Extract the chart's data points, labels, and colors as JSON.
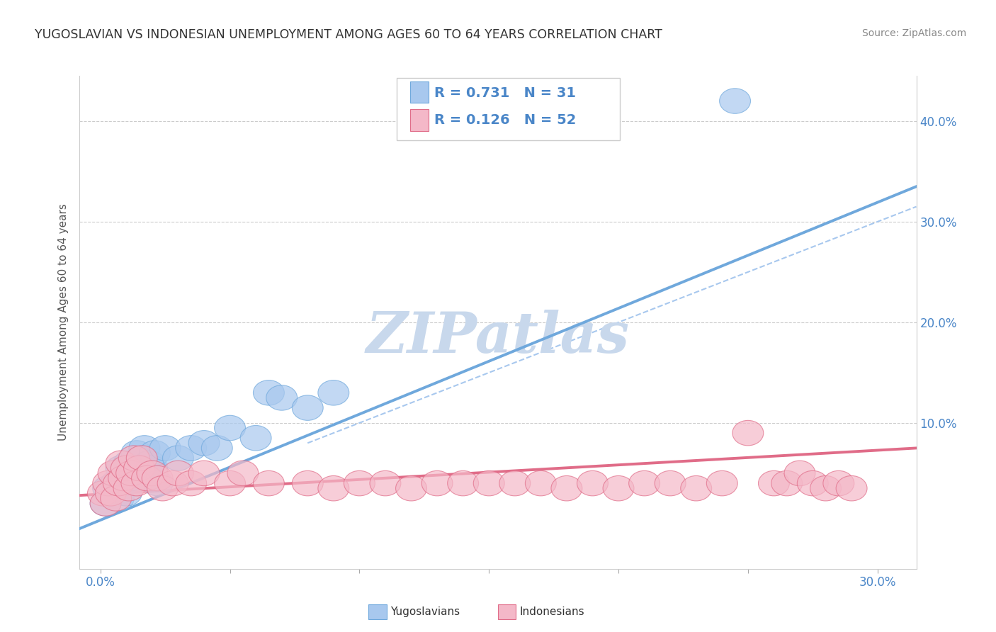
{
  "title": "YUGOSLAVIAN VS INDONESIAN UNEMPLOYMENT AMONG AGES 60 TO 64 YEARS CORRELATION CHART",
  "source": "Source: ZipAtlas.com",
  "xlabel_ticks": [
    0.0,
    0.05,
    0.1,
    0.15,
    0.2,
    0.25,
    0.3
  ],
  "xlabel_labels": [
    "0.0%",
    "",
    "",
    "",
    "",
    "",
    "30.0%"
  ],
  "ylabel_ticks": [
    0.0,
    0.1,
    0.2,
    0.3,
    0.4
  ],
  "ylabel_labels_right": [
    "",
    "10.0%",
    "20.0%",
    "30.0%",
    "40.0%"
  ],
  "xlim": [
    -0.008,
    0.315
  ],
  "ylim": [
    -0.045,
    0.445
  ],
  "ylabel": "Unemployment Among Ages 60 to 64 years",
  "yug_R": 0.731,
  "yug_N": 31,
  "ind_R": 0.126,
  "ind_N": 52,
  "blue_color": "#6fa8dc",
  "pink_color": "#e06c88",
  "blue_light": "#a8c8ee",
  "pink_light": "#f4b8c8",
  "blue_text_color": "#4a86c8",
  "watermark_color": "#c8d8ec",
  "grid_color": "#cccccc",
  "yug_scatter_x": [
    0.002,
    0.003,
    0.006,
    0.007,
    0.008,
    0.009,
    0.01,
    0.011,
    0.012,
    0.013,
    0.014,
    0.015,
    0.016,
    0.017,
    0.018,
    0.019,
    0.02,
    0.021,
    0.022,
    0.025,
    0.03,
    0.035,
    0.04,
    0.045,
    0.05,
    0.06,
    0.065,
    0.07,
    0.08,
    0.09,
    0.245
  ],
  "yug_scatter_y": [
    0.02,
    0.035,
    0.04,
    0.025,
    0.055,
    0.04,
    0.03,
    0.06,
    0.045,
    0.055,
    0.07,
    0.05,
    0.065,
    0.075,
    0.045,
    0.06,
    0.055,
    0.07,
    0.04,
    0.075,
    0.065,
    0.075,
    0.08,
    0.075,
    0.095,
    0.085,
    0.13,
    0.125,
    0.115,
    0.13,
    0.42
  ],
  "ind_scatter_x": [
    0.001,
    0.002,
    0.003,
    0.004,
    0.005,
    0.006,
    0.007,
    0.008,
    0.009,
    0.01,
    0.011,
    0.012,
    0.013,
    0.014,
    0.015,
    0.016,
    0.018,
    0.02,
    0.022,
    0.024,
    0.028,
    0.03,
    0.035,
    0.04,
    0.05,
    0.055,
    0.065,
    0.08,
    0.09,
    0.1,
    0.11,
    0.12,
    0.13,
    0.14,
    0.15,
    0.16,
    0.17,
    0.18,
    0.19,
    0.2,
    0.21,
    0.22,
    0.23,
    0.24,
    0.25,
    0.26,
    0.265,
    0.27,
    0.275,
    0.28,
    0.285,
    0.29
  ],
  "ind_scatter_y": [
    0.03,
    0.02,
    0.04,
    0.03,
    0.05,
    0.025,
    0.04,
    0.06,
    0.045,
    0.055,
    0.035,
    0.05,
    0.065,
    0.04,
    0.055,
    0.065,
    0.045,
    0.05,
    0.045,
    0.035,
    0.04,
    0.05,
    0.04,
    0.05,
    0.04,
    0.05,
    0.04,
    0.04,
    0.035,
    0.04,
    0.04,
    0.035,
    0.04,
    0.04,
    0.04,
    0.04,
    0.04,
    0.035,
    0.04,
    0.035,
    0.04,
    0.04,
    0.035,
    0.04,
    0.09,
    0.04,
    0.04,
    0.05,
    0.04,
    0.035,
    0.04,
    0.035
  ],
  "yug_trend_x": [
    -0.008,
    0.315
  ],
  "yug_trend_y": [
    -0.005,
    0.335
  ],
  "ind_trend_x": [
    -0.008,
    0.315
  ],
  "ind_trend_y": [
    0.028,
    0.075
  ],
  "ref_line_x": [
    0.08,
    0.315
  ],
  "ref_line_y": [
    0.08,
    0.315
  ]
}
